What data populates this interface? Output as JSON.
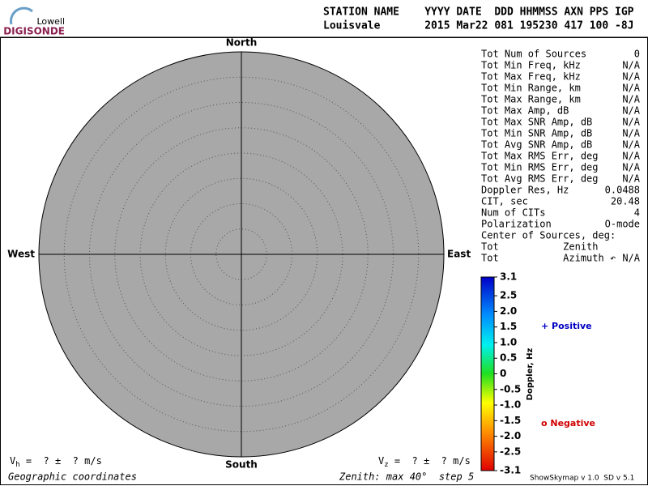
{
  "header": {
    "logo_top": "Lowell",
    "logo_bottom": "DIGISONDE",
    "columns": "STATION NAME    YYYY DATE  DDD HHMMSS AXN PPS IGP",
    "values": "Louisvale       2015 Mar22 081 195230 417 100 -8J"
  },
  "skymap": {
    "north": "North",
    "south": "South",
    "east": "East",
    "west": "West",
    "zenith_max": 40,
    "zenith_step": 5,
    "zenith_label": "Zenith: max 40°  step 5",
    "coordinates": "Geographic coordinates"
  },
  "velocity": {
    "vh_symbol": "V",
    "vh_sub": "h",
    "vh_text": " =  ? ±  ? m/s",
    "vz_symbol": "V",
    "vz_sub": "z",
    "vz_text": " =  ? ±  ? m/s"
  },
  "stats": [
    [
      "Tot Num of Sources",
      "0"
    ],
    [
      "Tot Min Freq, kHz",
      "N/A"
    ],
    [
      "Tot Max Freq, kHz",
      "N/A"
    ],
    [
      "Tot Min Range, km",
      "N/A"
    ],
    [
      "Tot Max Range, km",
      "N/A"
    ],
    [
      "Tot Max Amp, dB",
      "N/A"
    ],
    [
      "Tot Max SNR Amp, dB",
      "N/A"
    ],
    [
      "Tot Min SNR Amp, dB",
      "N/A"
    ],
    [
      "Tot Avg SNR Amp, dB",
      "N/A"
    ],
    [
      "Tot Max RMS Err, deg",
      "N/A"
    ],
    [
      "Tot Min RMS Err, deg",
      "N/A"
    ],
    [
      "Tot Avg RMS Err, deg",
      "N/A"
    ],
    [
      "Doppler Res, Hz",
      "0.0488"
    ],
    [
      "CIT, sec",
      "20.48"
    ],
    [
      "Num of CITs",
      "4"
    ],
    [
      "Polarization",
      "O-mode"
    ],
    [
      "Center of Sources, deg:"
    ],
    [
      "Tot           Zenith"
    ],
    [
      "Tot           Azimuth ↶",
      "N/A"
    ]
  ],
  "colorbar": {
    "label": "Doppler, Hz",
    "range": [
      -3.1,
      3.1
    ],
    "ticks": [
      3.1,
      2.5,
      {
        "value": 2,
        "label": "2.0"
      },
      1.5,
      {
        "value": 1,
        "label": "1.0"
      },
      0.5,
      0,
      -0.5,
      {
        "value": -1,
        "label": "-1.0"
      },
      -1.5,
      {
        "value": -2,
        "label": "-2.0"
      },
      -2.5,
      -3.1
    ]
  },
  "legend": {
    "positive": "+ Positive",
    "negative": "o Negative"
  },
  "footer": {
    "version": "ShowSkymap v 1.0  SD v 5.1"
  }
}
